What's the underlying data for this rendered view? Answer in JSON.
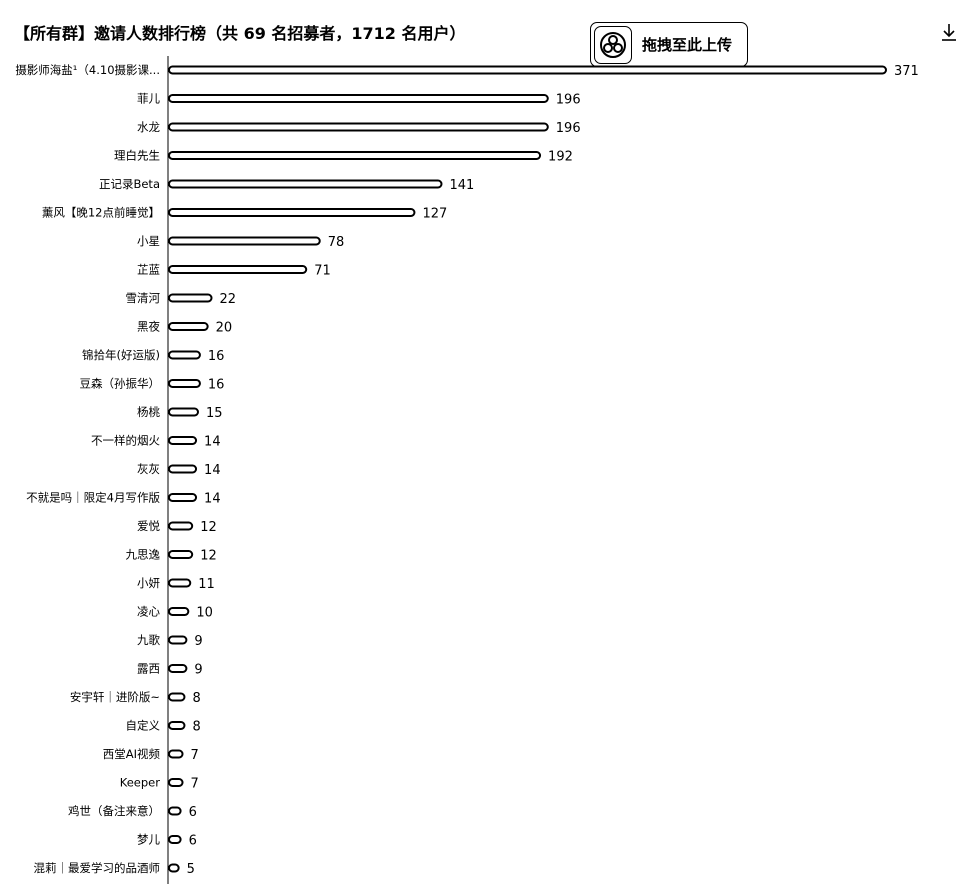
{
  "header": {
    "title": "【所有群】邀请人数排行榜（共 69 名招募者，1712 名用户）",
    "upload_label": "拖拽至此上传",
    "download_icon": "download-icon",
    "upload_icon": "cloud-upload-icon"
  },
  "chart_data": {
    "type": "bar",
    "orientation": "horizontal",
    "title": "【所有群】邀请人数排行榜（共 69 名招募者，1712 名用户）",
    "xlim": [
      0,
      371
    ],
    "grid": false,
    "categories": [
      "摄影师海盐¹（4.10摄影课...",
      "菲儿",
      "水龙",
      "理白先生",
      "正记录Beta",
      "薰风【晚12点前睡觉】",
      "小星",
      "芷蓝",
      "雪清河",
      "黑夜",
      "锦拾年(好运版)",
      "豆森（孙振华）",
      "杨桃",
      "不一样的烟火",
      "灰灰",
      "不就是吗｜限定4月写作版",
      "爱悦",
      "九思逸",
      "小妍",
      "凌心",
      "九歌",
      "露西",
      "安宇轩｜进阶版~",
      "自定义",
      "西堂AI视频",
      "Keeper",
      "鸡世（备注来意）",
      "梦儿",
      "混莉｜最爱学习的品酒师"
    ],
    "values": [
      371,
      196,
      196,
      192,
      141,
      127,
      78,
      71,
      22,
      20,
      16,
      16,
      15,
      14,
      14,
      14,
      12,
      12,
      11,
      10,
      9,
      9,
      8,
      8,
      7,
      7,
      6,
      6,
      5
    ]
  }
}
